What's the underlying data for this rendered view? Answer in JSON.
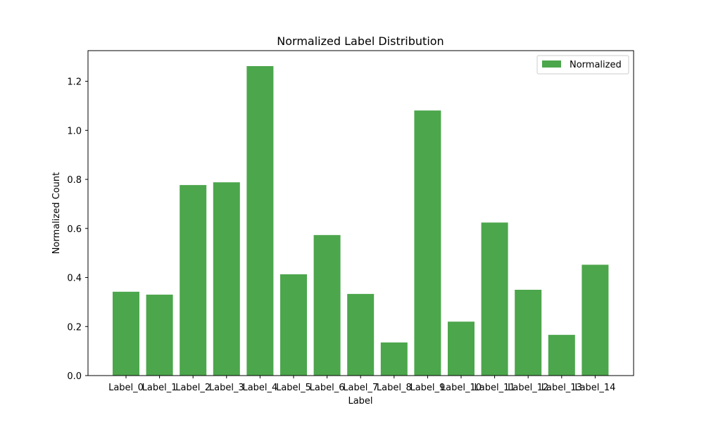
{
  "chart_data": {
    "type": "bar",
    "title": "Normalized Label Distribution",
    "xlabel": "Label",
    "ylabel": "Normalized Count",
    "categories": [
      "Label_0",
      "Label_1",
      "Label_2",
      "Label_3",
      "Label_4",
      "Label_5",
      "Label_6",
      "Label_7",
      "Label_8",
      "Label_9",
      "Label_10",
      "Label_11",
      "Label_12",
      "Label_13",
      "Label_14"
    ],
    "series": [
      {
        "name": "Normalized",
        "color": "#4ca64c",
        "values": [
          0.342,
          0.33,
          0.777,
          0.788,
          1.262,
          0.413,
          0.573,
          0.333,
          0.135,
          1.081,
          0.22,
          0.624,
          0.35,
          0.166,
          0.452
        ]
      }
    ],
    "ylim": [
      0,
      1.325
    ],
    "yticks": [
      "0.0",
      "0.2",
      "0.4",
      "0.6",
      "0.8",
      "1.0",
      "1.2"
    ],
    "grid": false,
    "legend": "top-right"
  }
}
